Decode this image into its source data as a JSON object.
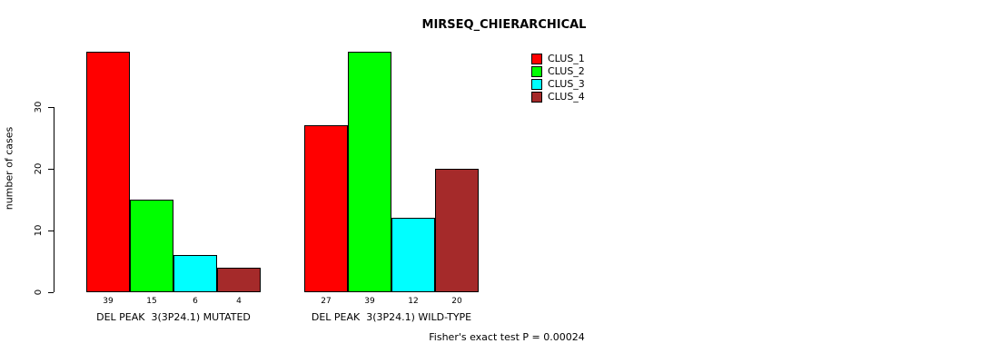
{
  "chart_data": {
    "type": "bar",
    "title": "MIRSEQ_CHIERARCHICAL",
    "ylabel": "number of cases",
    "xlabel": "",
    "yticks": [
      0,
      10,
      20,
      30
    ],
    "ylim": [
      0,
      39
    ],
    "grid": false,
    "legend_position": "right",
    "categories": [
      "DEL PEAK  3(3P24.1) MUTATED",
      "DEL PEAK  3(3P24.1) WILD-TYPE"
    ],
    "series": [
      {
        "name": "CLUS_1",
        "color": "#ff0000",
        "values": [
          39,
          27
        ]
      },
      {
        "name": "CLUS_2",
        "color": "#00ff00",
        "values": [
          15,
          39
        ]
      },
      {
        "name": "CLUS_3",
        "color": "#00ffff",
        "values": [
          6,
          12
        ]
      },
      {
        "name": "CLUS_4",
        "color": "#a52a2a",
        "values": [
          4,
          20
        ]
      }
    ],
    "bar_value_labels_shown": true,
    "annotation": "Fisher's exact test P = 0.00024"
  }
}
